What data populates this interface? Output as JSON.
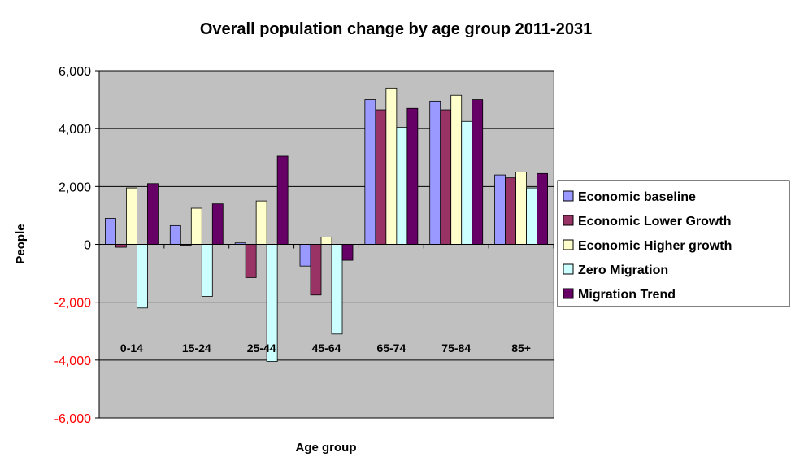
{
  "chart_data": {
    "type": "bar",
    "title": "Overall population change by age group 2011-2031",
    "xlabel": "Age group",
    "ylabel": "People",
    "ylim": [
      -6000,
      6000
    ],
    "yticks": [
      6000,
      4000,
      2000,
      0,
      -2000,
      -4000,
      -6000
    ],
    "ytick_labels": [
      "6,000",
      "4,000",
      "2,000",
      "0",
      "-2,000",
      "-4,000",
      "-6,000"
    ],
    "negative_tick_color": "#ff0000",
    "grid": true,
    "plot_background": "#c0c0c0",
    "legend_position": "right",
    "categories": [
      "0-14",
      "15-24",
      "25-44",
      "45-64",
      "65-74",
      "75-84",
      "85+"
    ],
    "series": [
      {
        "name": "Economic baseline",
        "color": "#9999ff",
        "values": [
          900,
          650,
          50,
          -750,
          5000,
          4950,
          2400
        ]
      },
      {
        "name": "Economic Lower Growth",
        "color": "#993366",
        "values": [
          -100,
          0,
          -1150,
          -1750,
          4650,
          4650,
          2300
        ]
      },
      {
        "name": "Economic Higher growth",
        "color": "#ffffcc",
        "values": [
          1950,
          1250,
          1500,
          250,
          5400,
          5150,
          2500
        ]
      },
      {
        "name": "Zero Migration",
        "color": "#ccffff",
        "values": [
          -2200,
          -1800,
          -4050,
          -3100,
          4050,
          4250,
          1950
        ]
      },
      {
        "name": "Migration Trend",
        "color": "#660066",
        "values": [
          2100,
          1400,
          3050,
          -550,
          4700,
          5000,
          2450
        ]
      }
    ]
  }
}
